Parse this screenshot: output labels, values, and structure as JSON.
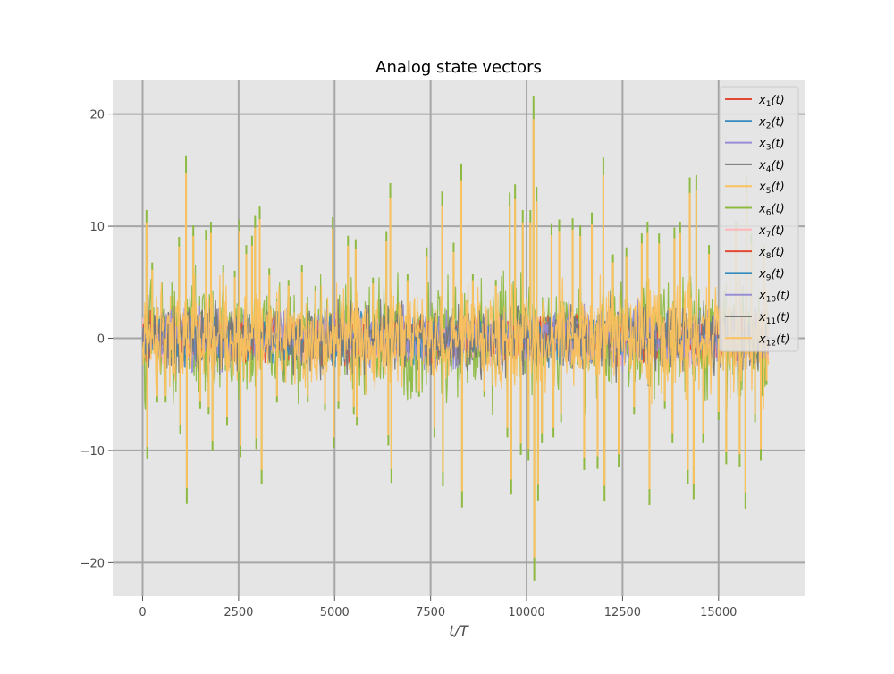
{
  "chart_data": {
    "type": "line",
    "title": "Analog state vectors",
    "xlabel": "t/T",
    "ylabel": "",
    "xlim": [
      -780,
      17240
    ],
    "ylim": [
      -23,
      23
    ],
    "x_ticks": [
      0,
      2500,
      5000,
      7500,
      10000,
      12500,
      15000
    ],
    "x_tick_labels": [
      "0",
      "2500",
      "5000",
      "7500",
      "10000",
      "12500",
      "15000"
    ],
    "y_ticks": [
      -20,
      -10,
      0,
      10,
      20
    ],
    "y_tick_labels": [
      "−20",
      "−10",
      "0",
      "10",
      "20"
    ],
    "grid": true,
    "legend_position": "top-right",
    "x_range": [
      0,
      16300
    ],
    "series": [
      {
        "name": "x1(t)",
        "color": "#e24a33",
        "amplitude": 0.8
      },
      {
        "name": "x2(t)",
        "color": "#348abd",
        "amplitude": 0.8
      },
      {
        "name": "x3(t)",
        "color": "#988ed5",
        "amplitude": 1.0
      },
      {
        "name": "x4(t)",
        "color": "#777777",
        "amplitude": 1.2
      },
      {
        "name": "x5(t)",
        "color": "#fbc15e",
        "amplitude": 1.5
      },
      {
        "name": "x6(t)",
        "color": "#8eba42",
        "amplitude": 2.5
      },
      {
        "name": "x7(t)",
        "color": "#ffb5b8",
        "amplitude": 1.0
      },
      {
        "name": "x8(t)",
        "color": "#e24a33",
        "amplitude": 1.0
      },
      {
        "name": "x9(t)",
        "color": "#348abd",
        "amplitude": 1.0
      },
      {
        "name": "x10(t)",
        "color": "#988ed5",
        "amplitude": 1.2
      },
      {
        "name": "x11(t)",
        "color": "#777777",
        "amplitude": 1.5
      },
      {
        "name": "x12(t)",
        "color": "#fbc15e",
        "amplitude": 2.2
      }
    ],
    "spikes": [
      {
        "x": 100,
        "y": 11.0
      },
      {
        "x": 120,
        "y": -10.3
      },
      {
        "x": 250,
        "y": 6.5
      },
      {
        "x": 380,
        "y": -5.5
      },
      {
        "x": 600,
        "y": -5.5
      },
      {
        "x": 950,
        "y": 8.7
      },
      {
        "x": 980,
        "y": -8.2
      },
      {
        "x": 1130,
        "y": 15.7
      },
      {
        "x": 1150,
        "y": -14.2
      },
      {
        "x": 1320,
        "y": 9.7
      },
      {
        "x": 1500,
        "y": -6.0
      },
      {
        "x": 1650,
        "y": 9.3
      },
      {
        "x": 1720,
        "y": -6.5
      },
      {
        "x": 1780,
        "y": 10.0
      },
      {
        "x": 1820,
        "y": -9.7
      },
      {
        "x": 2100,
        "y": 6.3
      },
      {
        "x": 2200,
        "y": -7.5
      },
      {
        "x": 2400,
        "y": 5.8
      },
      {
        "x": 2520,
        "y": 10.2
      },
      {
        "x": 2550,
        "y": -10.2
      },
      {
        "x": 2700,
        "y": 8.0
      },
      {
        "x": 2850,
        "y": 8.8
      },
      {
        "x": 2930,
        "y": 10.5
      },
      {
        "x": 2960,
        "y": -9.5
      },
      {
        "x": 3050,
        "y": 11.3
      },
      {
        "x": 3100,
        "y": -12.5
      },
      {
        "x": 3300,
        "y": 6.0
      },
      {
        "x": 3500,
        "y": -5.5
      },
      {
        "x": 3800,
        "y": 5.0
      },
      {
        "x": 4150,
        "y": 6.3
      },
      {
        "x": 4300,
        "y": -5.5
      },
      {
        "x": 4500,
        "y": 4.5
      },
      {
        "x": 4750,
        "y": -6.2
      },
      {
        "x": 4950,
        "y": 10.4
      },
      {
        "x": 4980,
        "y": -9.4
      },
      {
        "x": 5100,
        "y": -6.0
      },
      {
        "x": 5350,
        "y": 8.8
      },
      {
        "x": 5500,
        "y": -6.5
      },
      {
        "x": 5550,
        "y": 8.5
      },
      {
        "x": 5580,
        "y": -7.5
      },
      {
        "x": 6000,
        "y": 5.2
      },
      {
        "x": 6350,
        "y": 9.2
      },
      {
        "x": 6400,
        "y": -9.2
      },
      {
        "x": 6450,
        "y": 13.3
      },
      {
        "x": 6480,
        "y": -12.4
      },
      {
        "x": 6900,
        "y": 5.5
      },
      {
        "x": 7200,
        "y": -5.0
      },
      {
        "x": 7400,
        "y": 7.8
      },
      {
        "x": 7600,
        "y": -8.5
      },
      {
        "x": 7800,
        "y": 12.6
      },
      {
        "x": 7820,
        "y": -12.7
      },
      {
        "x": 8100,
        "y": 8.2
      },
      {
        "x": 8300,
        "y": 15.0
      },
      {
        "x": 8320,
        "y": -14.5
      },
      {
        "x": 8600,
        "y": 5.5
      },
      {
        "x": 8900,
        "y": -5.0
      },
      {
        "x": 9200,
        "y": 5.0
      },
      {
        "x": 9500,
        "y": -8.5
      },
      {
        "x": 9560,
        "y": 12.5
      },
      {
        "x": 9600,
        "y": -13.4
      },
      {
        "x": 9700,
        "y": 13.2
      },
      {
        "x": 9850,
        "y": -10.0
      },
      {
        "x": 9900,
        "y": 11.0
      },
      {
        "x": 10050,
        "y": -10.5
      },
      {
        "x": 10100,
        "y": 11.0
      },
      {
        "x": 10180,
        "y": 20.8
      },
      {
        "x": 10200,
        "y": -20.8
      },
      {
        "x": 10260,
        "y": 13.0
      },
      {
        "x": 10300,
        "y": -13.9
      },
      {
        "x": 10400,
        "y": -9.0
      },
      {
        "x": 10650,
        "y": 9.8
      },
      {
        "x": 10700,
        "y": -8.5
      },
      {
        "x": 10850,
        "y": 10.2
      },
      {
        "x": 10900,
        "y": -7.2
      },
      {
        "x": 11200,
        "y": 10.3
      },
      {
        "x": 11400,
        "y": 9.7
      },
      {
        "x": 11500,
        "y": -11.3
      },
      {
        "x": 11700,
        "y": 10.8
      },
      {
        "x": 11850,
        "y": -11.2
      },
      {
        "x": 12000,
        "y": 15.5
      },
      {
        "x": 12030,
        "y": -14.0
      },
      {
        "x": 12250,
        "y": 7.2
      },
      {
        "x": 12400,
        "y": -11.0
      },
      {
        "x": 12600,
        "y": 7.8
      },
      {
        "x": 12800,
        "y": -6.5
      },
      {
        "x": 13000,
        "y": 9.0
      },
      {
        "x": 13150,
        "y": 10.0
      },
      {
        "x": 13200,
        "y": -14.3
      },
      {
        "x": 13450,
        "y": 9.0
      },
      {
        "x": 13600,
        "y": -6.0
      },
      {
        "x": 13800,
        "y": -9.0
      },
      {
        "x": 13850,
        "y": 9.5
      },
      {
        "x": 14000,
        "y": 10.0
      },
      {
        "x": 14200,
        "y": -12.5
      },
      {
        "x": 14250,
        "y": 13.8
      },
      {
        "x": 14350,
        "y": -13.8
      },
      {
        "x": 14420,
        "y": 14.0
      },
      {
        "x": 14600,
        "y": -9.0
      },
      {
        "x": 14750,
        "y": 8.0
      },
      {
        "x": 15000,
        "y": -7.0
      },
      {
        "x": 15200,
        "y": -10.8
      },
      {
        "x": 15450,
        "y": 10.0
      },
      {
        "x": 15550,
        "y": -11.0
      },
      {
        "x": 15700,
        "y": -14.6
      },
      {
        "x": 15730,
        "y": 13.8
      },
      {
        "x": 15850,
        "y": 9.0
      },
      {
        "x": 15950,
        "y": -7.2
      },
      {
        "x": 16100,
        "y": -10.5
      },
      {
        "x": 16180,
        "y": 8.0
      },
      {
        "x": 16250,
        "y": -4.0
      }
    ]
  }
}
